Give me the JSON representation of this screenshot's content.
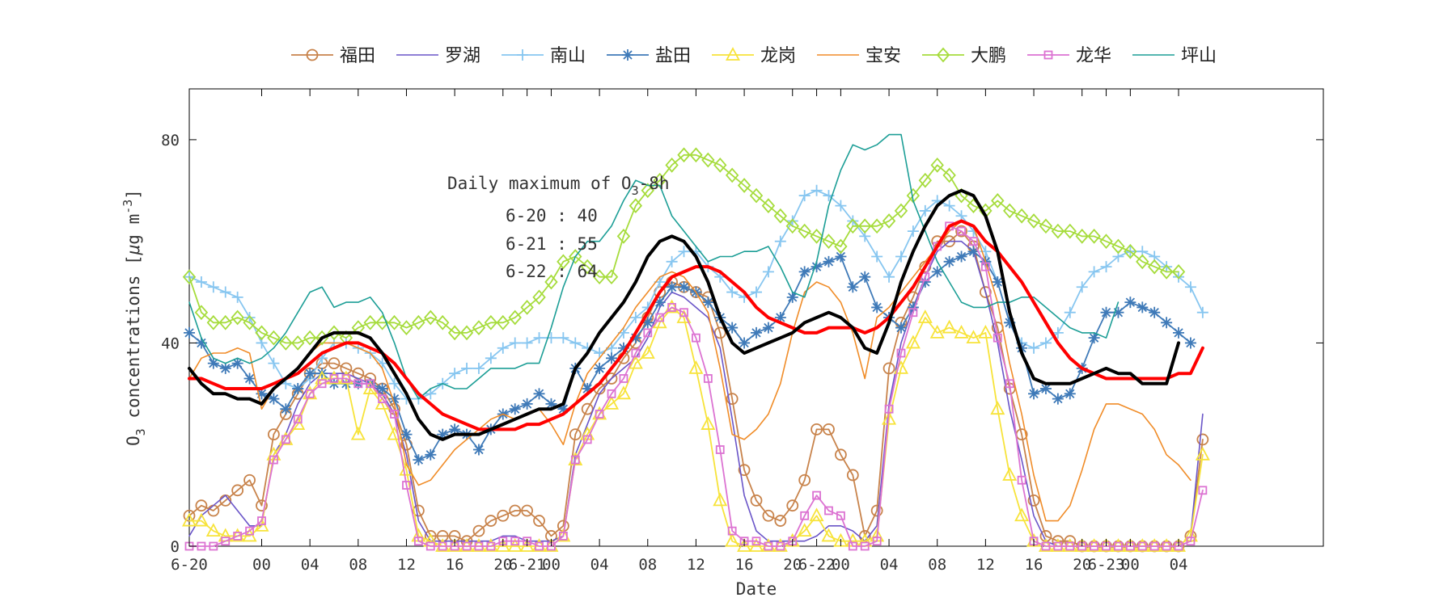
{
  "chart_data": {
    "type": "line",
    "xlabel": "Date",
    "ylabel": {
      "base": "O",
      "sub": "3",
      "rest": " concentrations [",
      "mu": "μ",
      "g_m": "g m",
      "sup": "-3",
      "close": "]"
    },
    "xlim": [
      0,
      94
    ],
    "ylim": [
      0,
      90
    ],
    "x_unit": "hours since 6-20 00:00 (hourly, 6-20 through 6-23)",
    "yticks": [
      0,
      40,
      80
    ],
    "xticks": [
      {
        "x": 0,
        "label": "6-20"
      },
      {
        "x": 6,
        "label": "00"
      },
      {
        "x": 10,
        "label": "04"
      },
      {
        "x": 14,
        "label": "08"
      },
      {
        "x": 18,
        "label": "12"
      },
      {
        "x": 22,
        "label": "16"
      },
      {
        "x": 26,
        "label": "20"
      },
      {
        "x": 28,
        "label": "6-21"
      },
      {
        "x": 30,
        "label": "00"
      },
      {
        "x": 34,
        "label": "04"
      },
      {
        "x": 38,
        "label": "08"
      },
      {
        "x": 42,
        "label": "12"
      },
      {
        "x": 46,
        "label": "16"
      },
      {
        "x": 50,
        "label": "20"
      },
      {
        "x": 52,
        "label": "6-22"
      },
      {
        "x": 54,
        "label": "00"
      },
      {
        "x": 58,
        "label": "04"
      },
      {
        "x": 62,
        "label": "08"
      },
      {
        "x": 66,
        "label": "12"
      },
      {
        "x": 70,
        "label": "16"
      },
      {
        "x": 74,
        "label": "20"
      },
      {
        "x": 76,
        "label": "6-23"
      },
      {
        "x": 78,
        "label": "00"
      },
      {
        "x": 82,
        "label": "04"
      }
    ],
    "grid": false,
    "legend_position": "top",
    "annotation": {
      "title_prefix": "Daily maximum of O",
      "title_sub": "3",
      "title_suffix": "-8h",
      "lines": [
        "6-20 : 40",
        "6-21 : 55",
        "6-22 : 64"
      ]
    },
    "x_start": 0,
    "x_step": 1,
    "series": [
      {
        "name": "福田",
        "color": "#c8834b",
        "marker": "circle",
        "width": 1.8,
        "values": [
          6,
          8,
          7,
          9,
          11,
          13,
          8,
          22,
          26,
          30,
          34,
          36,
          36,
          35,
          34,
          33,
          31,
          27,
          20,
          7,
          2,
          2,
          2,
          1,
          3,
          5,
          6,
          7,
          7,
          5,
          2,
          4,
          22,
          27,
          31,
          33,
          37,
          40,
          45,
          50,
          52,
          51,
          50,
          49,
          42,
          29,
          15,
          9,
          6,
          5,
          8,
          13,
          23,
          23,
          18,
          14,
          2,
          7,
          35,
          44,
          49,
          55,
          60,
          60,
          62,
          59,
          50,
          43,
          31,
          22,
          9,
          2,
          1,
          1,
          0,
          0,
          0,
          0,
          0,
          0,
          0,
          0,
          0,
          2,
          21
        ]
      },
      {
        "name": "罗湖",
        "color": "#6a55c8",
        "marker": "none",
        "width": 1.6,
        "values": [
          2,
          6,
          8,
          10,
          7,
          4,
          4,
          18,
          22,
          28,
          32,
          34,
          34,
          34,
          33,
          32,
          30,
          26,
          18,
          5,
          1,
          1,
          1,
          1,
          1,
          1,
          2,
          2,
          1,
          1,
          1,
          2,
          18,
          24,
          30,
          33,
          35,
          37,
          41,
          47,
          50,
          49,
          47,
          45,
          39,
          25,
          10,
          3,
          1,
          1,
          1,
          1,
          2,
          4,
          4,
          3,
          1,
          4,
          28,
          40,
          47,
          53,
          58,
          60,
          60,
          58,
          50,
          40,
          27,
          17,
          6,
          1,
          0,
          0,
          0,
          0,
          0,
          0,
          0,
          0,
          0,
          0,
          0,
          2,
          26
        ]
      },
      {
        "name": "南山",
        "color": "#87c6f0",
        "marker": "plus",
        "width": 1.8,
        "values": [
          53,
          52,
          51,
          50,
          49,
          45,
          40,
          36,
          32,
          31,
          33,
          37,
          40,
          40,
          39,
          38,
          36,
          32,
          29,
          29,
          30,
          32,
          34,
          35,
          35,
          37,
          39,
          40,
          40,
          41,
          41,
          41,
          40,
          39,
          38,
          39,
          42,
          45,
          47,
          52,
          56,
          58,
          58,
          55,
          53,
          50,
          49,
          50,
          54,
          60,
          64,
          69,
          70,
          69,
          67,
          64,
          61,
          57,
          53,
          57,
          62,
          66,
          68,
          67,
          65,
          62,
          58,
          52,
          44,
          40,
          39,
          40,
          42,
          46,
          51,
          54,
          55,
          57,
          58,
          58,
          57,
          55,
          53,
          51,
          46
        ]
      },
      {
        "name": "盐田",
        "color": "#3f7ab8",
        "marker": "asterisk",
        "width": 1.8,
        "values": [
          42,
          40,
          36,
          35,
          36,
          33,
          30,
          29,
          27,
          31,
          34,
          34,
          32,
          32,
          32,
          32,
          31,
          29,
          22,
          17,
          18,
          22,
          23,
          22,
          19,
          23,
          26,
          27,
          28,
          30,
          28,
          27,
          35,
          31,
          35,
          37,
          39,
          41,
          44,
          48,
          51,
          51,
          50,
          48,
          45,
          43,
          40,
          42,
          43,
          45,
          49,
          54,
          55,
          56,
          57,
          51,
          53,
          47,
          45,
          43,
          47,
          52,
          54,
          56,
          57,
          58,
          56,
          52,
          44,
          39,
          30,
          31,
          29,
          30,
          35,
          41,
          46,
          46,
          48,
          47,
          46,
          44,
          42,
          40
        ]
      },
      {
        "name": "龙岗",
        "color": "#f7e33a",
        "marker": "triangle",
        "width": 1.8,
        "values": [
          5,
          5,
          3,
          2,
          2,
          2,
          4,
          18,
          21,
          24,
          30,
          33,
          33,
          33,
          22,
          31,
          28,
          22,
          15,
          2,
          1,
          0,
          0,
          0,
          0,
          0,
          0,
          0,
          0,
          0,
          0,
          2,
          17,
          22,
          26,
          28,
          30,
          36,
          38,
          44,
          47,
          45,
          35,
          24,
          9,
          1,
          0,
          0,
          0,
          0,
          1,
          3,
          6,
          2,
          1,
          1,
          1,
          2,
          25,
          35,
          40,
          45,
          42,
          43,
          42,
          41,
          42,
          27,
          14,
          6,
          1,
          0,
          0,
          0,
          0,
          0,
          0,
          0,
          0,
          0,
          0,
          0,
          0,
          2,
          18
        ]
      },
      {
        "name": "宝安",
        "color": "#f08c28",
        "marker": "none",
        "width": 1.6,
        "values": [
          33,
          37,
          38,
          38,
          39,
          38,
          27,
          31,
          33,
          35,
          38,
          40,
          40,
          40,
          39,
          38,
          35,
          28,
          16,
          12,
          13,
          16,
          19,
          21,
          23,
          25,
          26,
          25,
          26,
          27,
          24,
          20,
          28,
          34,
          37,
          40,
          43,
          47,
          50,
          53,
          54,
          53,
          50,
          46,
          35,
          22,
          21,
          23,
          26,
          32,
          42,
          50,
          52,
          51,
          48,
          42,
          33,
          45,
          47,
          50,
          53,
          56,
          59,
          62,
          64,
          63,
          56,
          48,
          36,
          26,
          14,
          5,
          5,
          8,
          15,
          23,
          28,
          28,
          27,
          26,
          23,
          18,
          16,
          13
        ]
      },
      {
        "name": "大鹏",
        "color": "#a6dc3c",
        "marker": "diamond",
        "width": 1.8,
        "values": [
          53,
          46,
          44,
          44,
          45,
          44,
          42,
          41,
          40,
          40,
          41,
          41,
          42,
          41,
          43,
          44,
          44,
          44,
          43,
          44,
          45,
          44,
          42,
          42,
          43,
          44,
          44,
          45,
          47,
          49,
          52,
          56,
          57,
          55,
          53,
          53,
          61,
          67,
          70,
          72,
          75,
          77,
          77,
          76,
          75,
          73,
          71,
          69,
          67,
          65,
          63,
          62,
          61,
          60,
          59,
          63,
          63,
          63,
          64,
          66,
          69,
          72,
          75,
          73,
          69,
          67,
          66,
          68,
          66,
          65,
          64,
          63,
          62,
          62,
          61,
          61,
          60,
          59,
          58,
          56,
          55,
          54,
          54
        ]
      },
      {
        "name": "龙华",
        "color": "#dc73d2",
        "marker": "square",
        "width": 1.8,
        "values": [
          0,
          0,
          0,
          1,
          2,
          3,
          5,
          17,
          21,
          25,
          30,
          32,
          33,
          33,
          32,
          32,
          29,
          26,
          12,
          1,
          0,
          0,
          0,
          0,
          0,
          0,
          1,
          1,
          1,
          0,
          0,
          2,
          17,
          21,
          26,
          30,
          33,
          38,
          42,
          45,
          47,
          46,
          41,
          33,
          19,
          3,
          1,
          1,
          0,
          0,
          1,
          6,
          10,
          7,
          6,
          0,
          0,
          1,
          27,
          38,
          46,
          53,
          59,
          63,
          62,
          60,
          55,
          41,
          32,
          13,
          1,
          0,
          0,
          0,
          0,
          0,
          0,
          0,
          0,
          0,
          0,
          0,
          0,
          1,
          11
        ]
      },
      {
        "name": "坪山",
        "color": "#1c9e96",
        "marker": "none",
        "width": 1.6,
        "values": [
          48,
          41,
          37,
          36,
          37,
          36,
          37,
          39,
          42,
          46,
          50,
          51,
          47,
          48,
          48,
          49,
          46,
          40,
          33,
          29,
          31,
          32,
          31,
          31,
          33,
          35,
          35,
          35,
          36,
          36,
          43,
          51,
          57,
          60,
          60,
          63,
          68,
          72,
          71,
          71,
          65,
          62,
          59,
          56,
          57,
          57,
          58,
          58,
          59,
          55,
          50,
          49,
          56,
          67,
          74,
          79,
          78,
          79,
          81,
          81,
          68,
          62,
          56,
          52,
          48,
          47,
          47,
          48,
          48,
          49,
          49,
          47,
          45,
          43,
          42,
          42,
          41,
          48
        ]
      },
      {
        "name": "",
        "color": "#ff0000",
        "marker": "none",
        "width": 4,
        "values": [
          33,
          33,
          32,
          31,
          31,
          31,
          31,
          32,
          33,
          34,
          36,
          38,
          39,
          40,
          40,
          39,
          38,
          36,
          33,
          30,
          28,
          26,
          25,
          24,
          23,
          23,
          23,
          23,
          24,
          24,
          25,
          26,
          28,
          30,
          32,
          35,
          38,
          42,
          46,
          50,
          53,
          54,
          55,
          55,
          54,
          52,
          50,
          47,
          45,
          44,
          43,
          42,
          42,
          43,
          43,
          43,
          42,
          43,
          45,
          48,
          51,
          55,
          59,
          63,
          64,
          63,
          60,
          58,
          55,
          52,
          48,
          44,
          40,
          37,
          35,
          34,
          33,
          33,
          33,
          33,
          33,
          33,
          34,
          34,
          39
        ]
      },
      {
        "name": "",
        "color": "#000000",
        "marker": "none",
        "width": 4,
        "values": [
          35,
          32,
          30,
          30,
          29,
          29,
          28,
          31,
          33,
          35,
          38,
          41,
          42,
          42,
          42,
          41,
          38,
          34,
          30,
          25,
          22,
          21,
          22,
          22,
          22,
          23,
          24,
          25,
          26,
          27,
          27,
          28,
          35,
          38,
          42,
          45,
          48,
          52,
          57,
          60,
          61,
          60,
          57,
          52,
          45,
          40,
          38,
          39,
          40,
          41,
          42,
          44,
          45,
          46,
          45,
          43,
          39,
          38,
          44,
          52,
          58,
          63,
          67,
          69,
          70,
          69,
          65,
          58,
          46,
          38,
          33,
          32,
          32,
          32,
          33,
          34,
          35,
          34,
          34,
          32,
          32,
          32,
          40
        ]
      }
    ]
  }
}
